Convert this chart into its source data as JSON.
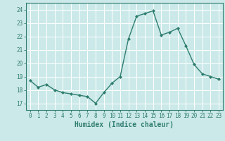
{
  "x": [
    0,
    1,
    2,
    3,
    4,
    5,
    6,
    7,
    8,
    9,
    10,
    11,
    12,
    13,
    14,
    15,
    16,
    17,
    18,
    19,
    20,
    21,
    22,
    23
  ],
  "y": [
    18.7,
    18.2,
    18.4,
    18.0,
    17.8,
    17.7,
    17.6,
    17.5,
    17.0,
    17.8,
    18.5,
    19.0,
    21.8,
    23.5,
    23.7,
    23.9,
    22.1,
    22.3,
    22.6,
    21.3,
    19.9,
    19.2,
    19.0,
    18.8
  ],
  "line_color": "#2e7d6e",
  "marker": "D",
  "marker_size": 2.0,
  "bg_color": "#cce9e9",
  "grid_color": "#ffffff",
  "xlabel": "Humidex (Indice chaleur)",
  "xlim": [
    -0.5,
    23.5
  ],
  "ylim": [
    16.5,
    24.5
  ],
  "yticks": [
    17,
    18,
    19,
    20,
    21,
    22,
    23,
    24
  ],
  "xticks": [
    0,
    1,
    2,
    3,
    4,
    5,
    6,
    7,
    8,
    9,
    10,
    11,
    12,
    13,
    14,
    15,
    16,
    17,
    18,
    19,
    20,
    21,
    22,
    23
  ],
  "tick_fontsize": 5.5,
  "xlabel_fontsize": 7.0,
  "tick_color": "#2e7d6e",
  "axis_color": "#2e7d6e",
  "linewidth": 1.0
}
